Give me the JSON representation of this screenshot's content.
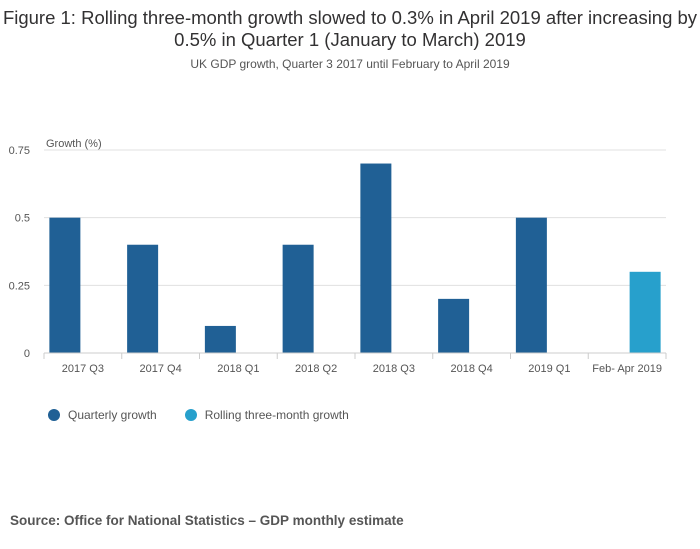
{
  "title": "Figure 1: Rolling three-month growth slowed to 0.3% in April 2019 after increasing by 0.5% in Quarter 1 (January to March) 2019",
  "subtitle": "UK GDP growth, Quarter 3 2017 until February to April 2019",
  "source": "Source: Office for National Statistics – GDP monthly estimate",
  "colors": {
    "quarterly": "#206095",
    "rolling": "#27a0cc",
    "grid": "#e0e0e0",
    "axis": "#cccccc"
  },
  "chart_data": {
    "type": "bar",
    "title": "Figure 1: Rolling three-month growth slowed to 0.3% in April 2019 after increasing by 0.5% in Quarter 1 (January to March) 2019",
    "ylabel": "Growth (%)",
    "xlabel": "",
    "ylim": [
      0,
      0.75
    ],
    "yticks": [
      "0",
      "0.25",
      "0.5",
      "0.75"
    ],
    "ytick_values": [
      0,
      0.25,
      0.5,
      0.75
    ],
    "categories": [
      "2017 Q3",
      "2017 Q4",
      "2018 Q1",
      "2018 Q2",
      "2018 Q3",
      "2018 Q4",
      "2019 Q1",
      "Feb- Apr 2019"
    ],
    "series": [
      {
        "name": "Quarterly growth",
        "values": [
          0.5,
          0.4,
          0.1,
          0.4,
          0.7,
          0.2,
          0.5,
          null
        ]
      },
      {
        "name": "Rolling three-month growth",
        "values": [
          null,
          null,
          null,
          null,
          null,
          null,
          null,
          0.3
        ]
      }
    ],
    "legend_position": "bottom-left",
    "grid": true
  }
}
